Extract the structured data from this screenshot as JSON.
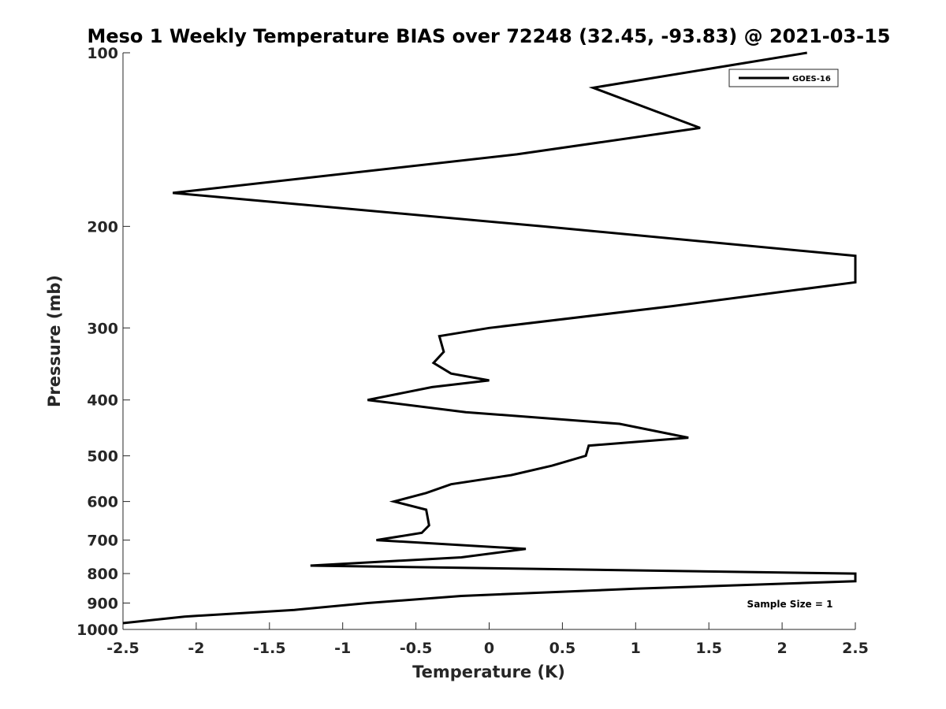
{
  "chart_data": {
    "type": "line",
    "title": "Meso 1 Weekly Temperature BIAS over 72248 (32.45, -93.83) @ 2021-03-15",
    "xlabel": "Temperature (K)",
    "ylabel": "Pressure (mb)",
    "xlim": [
      -2.5,
      2.5
    ],
    "ylim": [
      100,
      1000
    ],
    "y_scale": "log",
    "y_reversed": true,
    "x_ticks": [
      "-2.5",
      "-2",
      "-1.5",
      "-1",
      "-0.5",
      "0",
      "0.5",
      "1",
      "1.5",
      "2",
      "2.5"
    ],
    "y_ticks": [
      "100",
      "200",
      "300",
      "400",
      "500",
      "600",
      "700",
      "800",
      "900",
      "1000"
    ],
    "grid": false,
    "legend_position": "top-right",
    "annotation": "Sample Size = 1",
    "series": [
      {
        "name": "GOES-16",
        "color": "#000000",
        "x": [
          2.17,
          0.71,
          1.44,
          0.19,
          -2.16,
          0.37,
          2.5,
          2.5,
          1.25,
          0.0,
          -0.34,
          -0.31,
          -0.38,
          -0.26,
          0.0,
          -0.39,
          -0.83,
          -0.16,
          0.89,
          1.36,
          0.68,
          0.66,
          0.43,
          0.15,
          -0.26,
          -0.43,
          -0.65,
          -0.43,
          -0.42,
          -0.41,
          -0.46,
          -0.77,
          0.25,
          -0.19,
          -1.22,
          2.5,
          2.5,
          1.0,
          -0.19,
          -0.83,
          -1.33,
          -2.08,
          -2.5
        ],
        "y": [
          100,
          115,
          135,
          150,
          175,
          200,
          225,
          250,
          275,
          300,
          310,
          330,
          345,
          360,
          370,
          380,
          400,
          420,
          440,
          465,
          480,
          500,
          520,
          540,
          560,
          580,
          600,
          620,
          640,
          660,
          680,
          700,
          725,
          750,
          775,
          800,
          825,
          850,
          875,
          900,
          925,
          950,
          975
        ]
      }
    ]
  }
}
